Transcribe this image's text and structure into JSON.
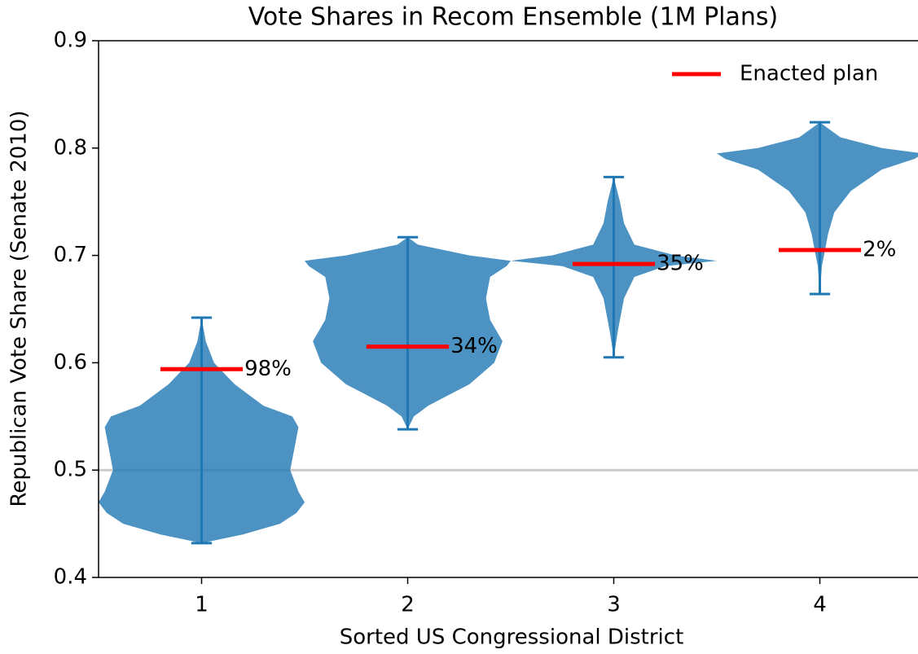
{
  "chart_data": {
    "type": "violin",
    "title": "Vote Shares in Recom Ensemble (1M Plans)",
    "xlabel": "Sorted US Congressional District",
    "ylabel": "Republican Vote Share (Senate 2010)",
    "categories": [
      1,
      2,
      3,
      4
    ],
    "xlim": [
      0.5,
      4.5
    ],
    "ylim": [
      0.4,
      0.9
    ],
    "yticks": [
      0.4,
      0.5,
      0.6,
      0.7,
      0.8,
      0.9
    ],
    "reference_line": 0.5,
    "color": "#1f77b4",
    "violins": [
      {
        "min": 0.432,
        "max": 0.642,
        "profile": {
          "y": [
            0.432,
            0.44,
            0.45,
            0.46,
            0.47,
            0.48,
            0.5,
            0.52,
            0.54,
            0.55,
            0.56,
            0.58,
            0.6,
            0.62,
            0.642
          ],
          "width": [
            0,
            0.2,
            0.38,
            0.46,
            0.5,
            0.47,
            0.43,
            0.45,
            0.47,
            0.44,
            0.3,
            0.16,
            0.06,
            0.02,
            0
          ]
        }
      },
      {
        "min": 0.538,
        "max": 0.717,
        "profile": {
          "y": [
            0.538,
            0.55,
            0.56,
            0.57,
            0.58,
            0.6,
            0.62,
            0.64,
            0.66,
            0.68,
            0.69,
            0.695,
            0.7,
            0.71,
            0.717
          ],
          "width": [
            0,
            0.03,
            0.1,
            0.2,
            0.3,
            0.42,
            0.46,
            0.4,
            0.38,
            0.4,
            0.48,
            0.5,
            0.3,
            0.05,
            0
          ]
        }
      },
      {
        "min": 0.605,
        "max": 0.773,
        "profile": {
          "y": [
            0.605,
            0.63,
            0.66,
            0.68,
            0.69,
            0.695,
            0.7,
            0.71,
            0.73,
            0.75,
            0.773
          ],
          "width": [
            0,
            0.02,
            0.05,
            0.1,
            0.25,
            0.5,
            0.3,
            0.1,
            0.05,
            0.03,
            0
          ]
        }
      },
      {
        "min": 0.664,
        "max": 0.824,
        "profile": {
          "y": [
            0.664,
            0.69,
            0.7,
            0.72,
            0.74,
            0.76,
            0.78,
            0.79,
            0.795,
            0.8,
            0.81,
            0.824
          ],
          "width": [
            0,
            0.01,
            0.02,
            0.04,
            0.07,
            0.15,
            0.3,
            0.46,
            0.5,
            0.3,
            0.1,
            0
          ]
        }
      }
    ],
    "enacted": {
      "name": "Enacted plan",
      "color": "#ff0000",
      "values": [
        0.594,
        0.615,
        0.692,
        0.705
      ],
      "percentile_values": [
        98,
        34,
        35,
        2
      ],
      "percentile_labels": [
        "98%",
        "34%",
        "35%",
        "2%"
      ]
    },
    "legend": "upper right"
  }
}
